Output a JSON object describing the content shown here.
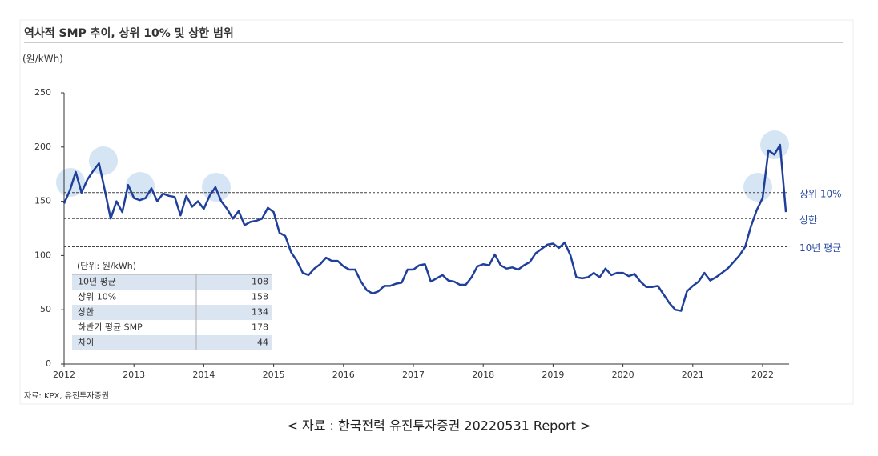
{
  "chart_data": {
    "type": "line",
    "title": "역사적 SMP 추이, 상위 10% 및 상한 범위",
    "y_label": "(원/kWh)",
    "source": "자료: KPX, 유진투자증권",
    "categories": [
      "2012",
      null,
      null,
      null,
      null,
      null,
      null,
      null,
      null,
      null,
      null,
      null,
      "2013",
      null,
      null,
      null,
      null,
      null,
      null,
      null,
      null,
      null,
      null,
      null,
      "2014",
      null,
      null,
      null,
      null,
      null,
      null,
      null,
      null,
      null,
      null,
      null,
      "2015",
      null,
      null,
      null,
      null,
      null,
      null,
      null,
      null,
      null,
      null,
      null,
      "2016",
      null,
      null,
      null,
      null,
      null,
      null,
      null,
      null,
      null,
      null,
      null,
      "2017",
      null,
      null,
      null,
      null,
      null,
      null,
      null,
      null,
      null,
      null,
      null,
      "2018",
      null,
      null,
      null,
      null,
      null,
      null,
      null,
      null,
      null,
      null,
      null,
      "2019",
      null,
      null,
      null,
      null,
      null,
      null,
      null,
      null,
      null,
      null,
      null,
      "2020",
      null,
      null,
      null,
      null,
      null,
      null,
      null,
      null,
      null,
      null,
      null,
      "2021",
      null,
      null,
      null,
      null,
      null,
      null,
      null,
      null,
      null,
      null,
      null,
      "2022",
      null,
      null,
      null,
      null
    ],
    "series": [
      {
        "color": "#1f3f9a",
        "values": [
          148,
          160,
          177,
          158,
          170,
          178,
          185,
          160,
          134,
          150,
          140,
          165,
          153,
          151,
          153,
          162,
          150,
          157,
          155,
          154,
          137,
          155,
          145,
          150,
          143,
          155,
          163,
          150,
          143,
          134,
          141,
          128,
          131,
          132,
          134,
          144,
          140,
          121,
          118,
          103,
          95,
          84,
          82,
          88,
          92,
          98,
          95,
          95,
          90,
          87,
          87,
          76,
          68,
          65,
          67,
          72,
          72,
          74,
          75,
          87,
          87,
          91,
          92,
          76,
          79,
          82,
          77,
          76,
          73,
          73,
          80,
          90,
          92,
          91,
          101,
          91,
          88,
          89,
          87,
          91,
          94,
          102,
          106,
          110,
          111,
          107,
          112,
          100,
          80,
          79,
          80,
          84,
          80,
          88,
          82,
          84,
          84,
          81,
          83,
          76,
          71,
          71,
          72,
          64,
          56,
          50,
          49,
          67,
          72,
          76,
          84,
          77,
          80,
          84,
          88,
          94,
          100,
          108,
          127,
          142,
          153,
          197,
          193,
          202,
          140
        ]
      }
    ],
    "reference_lines": [
      {
        "label": "상위 10%",
        "value": 158
      },
      {
        "label": "상한",
        "value": 134
      },
      {
        "label": "10년 평균",
        "value": 108
      }
    ],
    "ylim": [
      0,
      250
    ],
    "yticks": [
      0,
      50,
      100,
      150,
      200,
      250
    ]
  },
  "table": {
    "header": "(단위: 원/kWh)",
    "rows": [
      [
        "10년 평균",
        108
      ],
      [
        "상위 10%",
        158
      ],
      [
        "상한",
        134
      ],
      [
        "하반기 평균 SMP",
        178
      ],
      [
        "차이",
        44
      ]
    ]
  },
  "caption": "< 자료 : 한국전력 유진투자증권 20220531 Report >"
}
